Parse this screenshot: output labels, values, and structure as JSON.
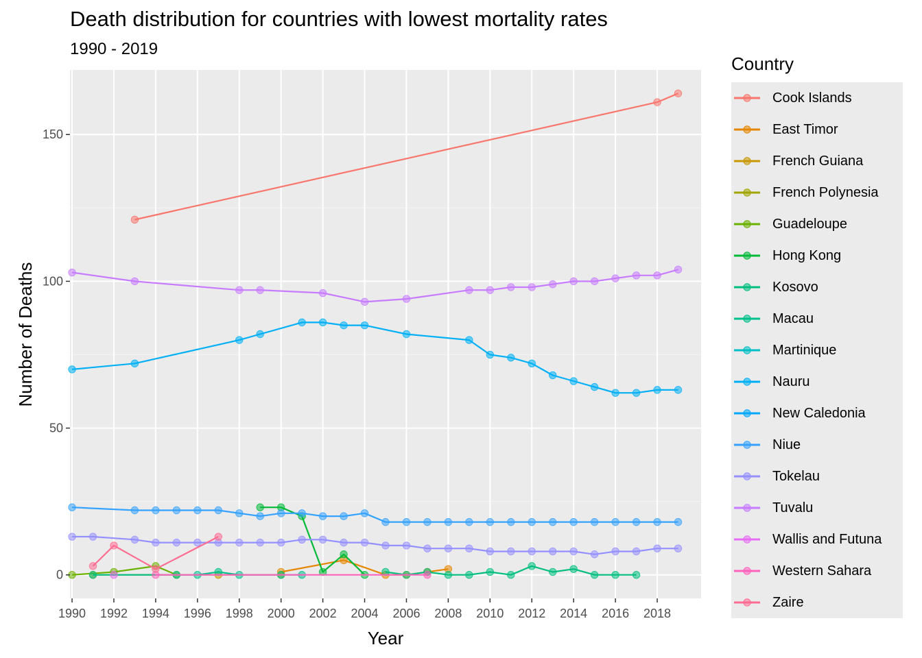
{
  "chart_data": {
    "type": "line",
    "title": "Death distribution for countries with lowest mortality rates",
    "subtitle": "1990 - 2019",
    "xlabel": "Year",
    "ylabel": "Number of Deaths",
    "xlim": [
      1989.9,
      2020.1
    ],
    "ylim": [
      -8,
      172
    ],
    "xticks": [
      1990,
      1992,
      1994,
      1996,
      1998,
      2000,
      2002,
      2004,
      2006,
      2008,
      2010,
      2012,
      2014,
      2016,
      2018
    ],
    "yticks": [
      0,
      50,
      100,
      150
    ],
    "grid": true,
    "legend": {
      "title": "Country",
      "position": "right"
    },
    "series": [
      {
        "name": "Cook Islands",
        "color": "#F8766D",
        "points": [
          [
            1993,
            121
          ],
          [
            2018,
            161
          ],
          [
            2019,
            164
          ]
        ]
      },
      {
        "name": "East Timor",
        "color": "#E58700",
        "points": [
          [
            2000,
            1
          ],
          [
            2003,
            5
          ],
          [
            2005,
            0
          ],
          [
            2006,
            0
          ],
          [
            2007,
            1
          ],
          [
            2008,
            2
          ]
        ]
      },
      {
        "name": "French Guiana",
        "color": "#C99800",
        "points": [
          [
            1997,
            0
          ]
        ]
      },
      {
        "name": "French Polynesia",
        "color": "#A3A500",
        "points": [
          [
            1991,
            0
          ],
          [
            2000,
            0
          ]
        ]
      },
      {
        "name": "Guadeloupe",
        "color": "#6BB100",
        "points": [
          [
            1990,
            0
          ],
          [
            1992,
            1
          ],
          [
            1994,
            3
          ],
          [
            1995,
            0
          ]
        ]
      },
      {
        "name": "Hong Kong",
        "color": "#00BA38",
        "points": [
          [
            1999,
            23
          ],
          [
            2000,
            23
          ],
          [
            2001,
            20
          ],
          [
            2002,
            1
          ],
          [
            2003,
            7
          ],
          [
            2004,
            0
          ]
        ]
      },
      {
        "name": "Kosovo",
        "color": "#00BF7D",
        "points": [
          [
            2005,
            1
          ],
          [
            2006,
            0
          ],
          [
            2007,
            1
          ],
          [
            2008,
            0
          ],
          [
            2009,
            0
          ],
          [
            2010,
            1
          ],
          [
            2011,
            0
          ],
          [
            2012,
            3
          ],
          [
            2013,
            1
          ],
          [
            2014,
            2
          ],
          [
            2015,
            0
          ],
          [
            2016,
            0
          ],
          [
            2017,
            0
          ]
        ]
      },
      {
        "name": "Macau",
        "color": "#00C08B",
        "points": [
          [
            1991,
            0
          ],
          [
            1995,
            0
          ],
          [
            1996,
            0
          ],
          [
            1997,
            1
          ],
          [
            1998,
            0
          ],
          [
            2000,
            0
          ],
          [
            2001,
            0
          ]
        ]
      },
      {
        "name": "Martinique",
        "color": "#00BFC4",
        "points": []
      },
      {
        "name": "Nauru",
        "color": "#00B0F6",
        "points": [
          [
            1990,
            70
          ],
          [
            1993,
            72
          ],
          [
            1998,
            80
          ],
          [
            1999,
            82
          ],
          [
            2001,
            86
          ],
          [
            2002,
            86
          ],
          [
            2003,
            85
          ],
          [
            2004,
            85
          ],
          [
            2006,
            82
          ],
          [
            2009,
            80
          ],
          [
            2010,
            75
          ],
          [
            2011,
            74
          ],
          [
            2012,
            72
          ],
          [
            2013,
            68
          ],
          [
            2014,
            66
          ],
          [
            2015,
            64
          ],
          [
            2016,
            62
          ],
          [
            2017,
            62
          ],
          [
            2018,
            63
          ],
          [
            2019,
            63
          ]
        ]
      },
      {
        "name": "New Caledonia",
        "color": "#00A9FF",
        "points": []
      },
      {
        "name": "Niue",
        "color": "#35A2FF",
        "points": [
          [
            1990,
            23
          ],
          [
            1993,
            22
          ],
          [
            1994,
            22
          ],
          [
            1995,
            22
          ],
          [
            1996,
            22
          ],
          [
            1997,
            22
          ],
          [
            1998,
            21
          ],
          [
            1999,
            20
          ],
          [
            2000,
            21
          ],
          [
            2001,
            21
          ],
          [
            2002,
            20
          ],
          [
            2003,
            20
          ],
          [
            2004,
            21
          ],
          [
            2005,
            18
          ],
          [
            2006,
            18
          ],
          [
            2007,
            18
          ],
          [
            2008,
            18
          ],
          [
            2009,
            18
          ],
          [
            2010,
            18
          ],
          [
            2011,
            18
          ],
          [
            2012,
            18
          ],
          [
            2013,
            18
          ],
          [
            2014,
            18
          ],
          [
            2015,
            18
          ],
          [
            2016,
            18
          ],
          [
            2017,
            18
          ],
          [
            2018,
            18
          ],
          [
            2019,
            18
          ]
        ]
      },
      {
        "name": "Tokelau",
        "color": "#9590FF",
        "points": [
          [
            1990,
            13
          ],
          [
            1991,
            13
          ],
          [
            1993,
            12
          ],
          [
            1994,
            11
          ],
          [
            1995,
            11
          ],
          [
            1996,
            11
          ],
          [
            1997,
            11
          ],
          [
            1998,
            11
          ],
          [
            1999,
            11
          ],
          [
            2000,
            11
          ],
          [
            2001,
            12
          ],
          [
            2002,
            12
          ],
          [
            2003,
            11
          ],
          [
            2004,
            11
          ],
          [
            2005,
            10
          ],
          [
            2006,
            10
          ],
          [
            2007,
            9
          ],
          [
            2008,
            9
          ],
          [
            2009,
            9
          ],
          [
            2010,
            8
          ],
          [
            2011,
            8
          ],
          [
            2012,
            8
          ],
          [
            2013,
            8
          ],
          [
            2014,
            8
          ],
          [
            2015,
            7
          ],
          [
            2016,
            8
          ],
          [
            2017,
            8
          ],
          [
            2018,
            9
          ],
          [
            2019,
            9
          ]
        ]
      },
      {
        "name": "Tuvalu",
        "color": "#C77CFF",
        "points": [
          [
            1990,
            103
          ],
          [
            1993,
            100
          ],
          [
            1998,
            97
          ],
          [
            1999,
            97
          ],
          [
            2002,
            96
          ],
          [
            2004,
            93
          ],
          [
            2006,
            94
          ],
          [
            2009,
            97
          ],
          [
            2010,
            97
          ],
          [
            2011,
            98
          ],
          [
            2012,
            98
          ],
          [
            2013,
            99
          ],
          [
            2014,
            100
          ],
          [
            2015,
            100
          ],
          [
            2016,
            101
          ],
          [
            2017,
            102
          ],
          [
            2018,
            102
          ],
          [
            2019,
            104
          ]
        ]
      },
      {
        "name": "Wallis and Futuna",
        "color": "#E76BF3",
        "points": [
          [
            1992,
            0
          ]
        ]
      },
      {
        "name": "Western Sahara",
        "color": "#FF62BC",
        "points": [
          [
            1994,
            0
          ],
          [
            2007,
            0
          ]
        ]
      },
      {
        "name": "Zaire",
        "color": "#FF6C91",
        "points": [
          [
            1991,
            3
          ],
          [
            1992,
            10
          ],
          [
            1994,
            2
          ],
          [
            1997,
            13
          ]
        ]
      }
    ]
  }
}
